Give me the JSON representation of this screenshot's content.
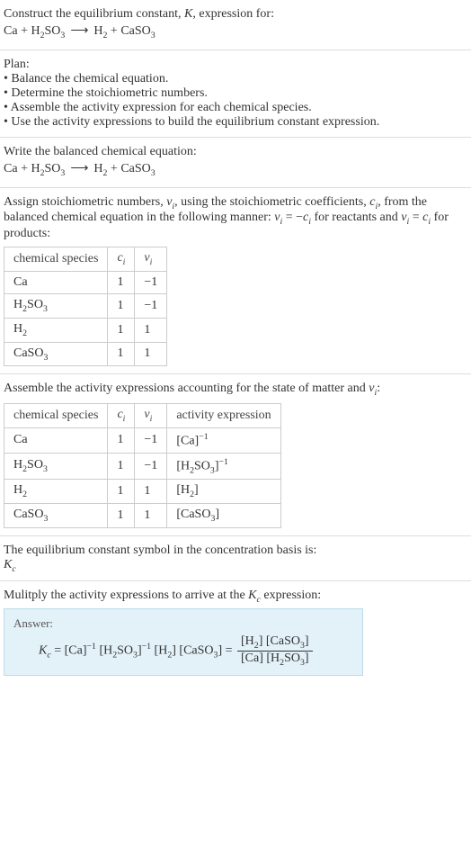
{
  "section1": {
    "line1": "Construct the equilibrium constant, ",
    "Ksym": "K",
    "line1b": ", expression for:"
  },
  "eq": {
    "lhs1": "Ca",
    "plus": " + ",
    "lhs2_a": "H",
    "lhs2_b": "2",
    "lhs2_c": "SO",
    "lhs2_d": "3",
    "arrow": "⟶",
    "rhs1_a": "H",
    "rhs1_b": "2",
    "rhs2_a": "CaSO",
    "rhs2_b": "3"
  },
  "plan": {
    "title": "Plan:",
    "b1": "• Balance the chemical equation.",
    "b2": "• Determine the stoichiometric numbers.",
    "b3": "• Assemble the activity expression for each chemical species.",
    "b4": "• Use the activity expressions to build the equilibrium constant expression."
  },
  "bal": {
    "title": "Write the balanced chemical equation:"
  },
  "stoich_intro": {
    "p1": "Assign stoichiometric numbers, ",
    "nu": "ν",
    "sub_i": "i",
    "p2": ", using the stoichiometric coefficients, ",
    "c": "c",
    "p3": ", from the balanced chemical equation in the following manner: ",
    "rel1a": "ν",
    "rel1b": "i",
    "rel1c": " = −",
    "rel1d": "c",
    "rel1e": "i",
    "p4": " for reactants and ",
    "rel2a": "ν",
    "rel2b": "i",
    "rel2c": " = ",
    "rel2d": "c",
    "rel2e": "i",
    "p5": " for products:"
  },
  "table1": {
    "h1": "chemical species",
    "h2_a": "c",
    "h2_b": "i",
    "h3_a": "ν",
    "h3_b": "i",
    "r1": {
      "sp": "Ca",
      "c": "1",
      "v": "−1"
    },
    "r2": {
      "sp_a": "H",
      "sp_b": "2",
      "sp_c": "SO",
      "sp_d": "3",
      "c": "1",
      "v": "−1"
    },
    "r3": {
      "sp_a": "H",
      "sp_b": "2",
      "c": "1",
      "v": "1"
    },
    "r4": {
      "sp_a": "CaSO",
      "sp_b": "3",
      "c": "1",
      "v": "1"
    }
  },
  "act_intro": {
    "p1": "Assemble the activity expressions accounting for the state of matter and ",
    "nu": "ν",
    "sub_i": "i",
    "colon": ":"
  },
  "table2": {
    "h1": "chemical species",
    "h2_a": "c",
    "h2_b": "i",
    "h3_a": "ν",
    "h3_b": "i",
    "h4": "activity expression",
    "r1": {
      "sp": "Ca",
      "c": "1",
      "v": "−1",
      "ae_a": "[Ca]",
      "ae_b": "−1"
    },
    "r2": {
      "sp_a": "H",
      "sp_b": "2",
      "sp_c": "SO",
      "sp_d": "3",
      "c": "1",
      "v": "−1",
      "ae_a": "[H",
      "ae_b": "2",
      "ae_c": "SO",
      "ae_d": "3",
      "ae_e": "]",
      "ae_f": "−1"
    },
    "r3": {
      "sp_a": "H",
      "sp_b": "2",
      "c": "1",
      "v": "1",
      "ae_a": "[H",
      "ae_b": "2",
      "ae_c": "]"
    },
    "r4": {
      "sp_a": "CaSO",
      "sp_b": "3",
      "c": "1",
      "v": "1",
      "ae_a": "[CaSO",
      "ae_b": "3",
      "ae_c": "]"
    }
  },
  "kc_intro": {
    "p1": "The equilibrium constant symbol in the concentration basis is:",
    "K": "K",
    "c": "c"
  },
  "mult": {
    "p1": "Mulitply the activity expressions to arrive at the ",
    "K": "K",
    "c": "c",
    "p2": " expression:"
  },
  "answer": {
    "label": "Answer:",
    "K": "K",
    "c": "c",
    "eq": " = ",
    "t1": "[Ca]",
    "t1e": "−1",
    "t2a": " [H",
    "t2b": "2",
    "t2c": "SO",
    "t2d": "3",
    "t2e": "]",
    "t2f": "−1",
    "t3a": " [H",
    "t3b": "2",
    "t3c": "]",
    "t4a": " [CaSO",
    "t4b": "3",
    "t4c": "] = ",
    "num_a": "[H",
    "num_b": "2",
    "num_c": "] [CaSO",
    "num_d": "3",
    "num_e": "]",
    "den_a": "[Ca] [H",
    "den_b": "2",
    "den_c": "SO",
    "den_d": "3",
    "den_e": "]"
  }
}
